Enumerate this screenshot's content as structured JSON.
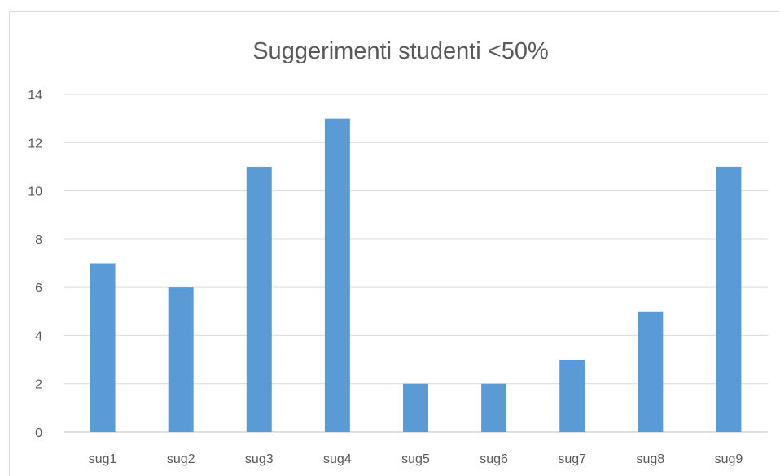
{
  "chart_data": {
    "type": "bar",
    "title": "Suggerimenti studenti <50%",
    "xlabel": "",
    "ylabel": "",
    "categories": [
      "sug1",
      "sug2",
      "sug3",
      "sug4",
      "sug5",
      "sug6",
      "sug7",
      "sug8",
      "sug9"
    ],
    "values": [
      7,
      6,
      11,
      13,
      2,
      2,
      3,
      5,
      11
    ],
    "ylim": [
      0,
      14
    ],
    "yticks": [
      0,
      2,
      4,
      6,
      8,
      10,
      12,
      14
    ],
    "grid": true,
    "legend": "none",
    "bar_color": "#5b9bd5"
  }
}
